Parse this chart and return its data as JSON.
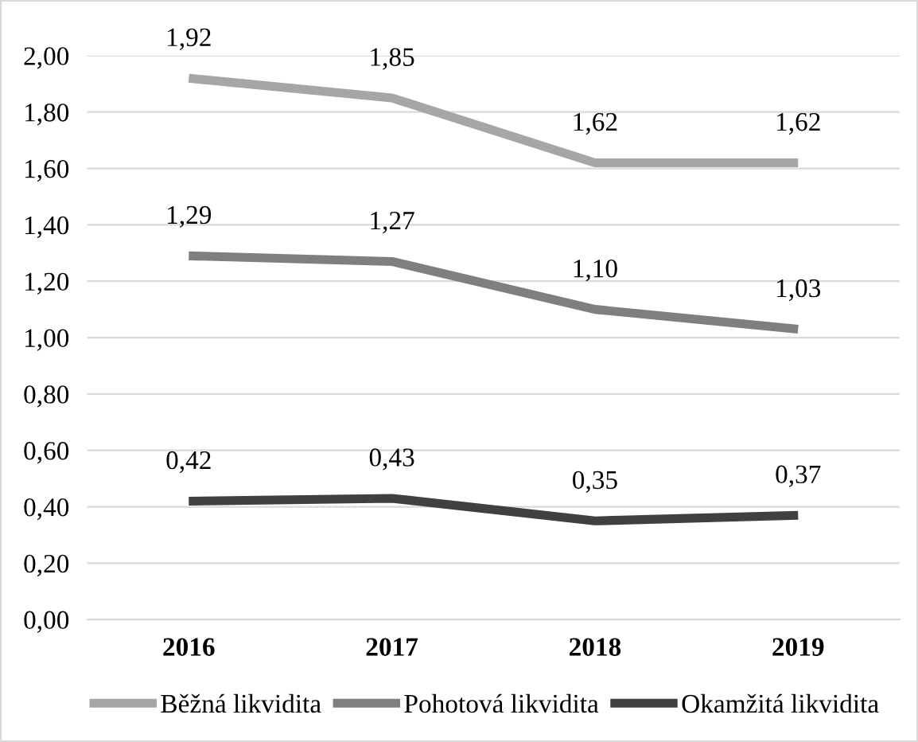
{
  "chart_data": {
    "type": "line",
    "categories": [
      "2016",
      "2017",
      "2018",
      "2019"
    ],
    "series": [
      {
        "name": "Běžná likvidita",
        "color": "#a6a6a6",
        "values": [
          1.92,
          1.85,
          1.62,
          1.62
        ],
        "value_labels": [
          "1,92",
          "1,85",
          "1,62",
          "1,62"
        ]
      },
      {
        "name": "Pohotová likvidita",
        "color": "#7f7f7f",
        "values": [
          1.29,
          1.27,
          1.1,
          1.03
        ],
        "value_labels": [
          "1,29",
          "1,27",
          "1,10",
          "1,03"
        ]
      },
      {
        "name": "Okamžitá likvidita",
        "color": "#404040",
        "values": [
          0.42,
          0.43,
          0.35,
          0.37
        ],
        "value_labels": [
          "0,42",
          "0,43",
          "0,35",
          "0,37"
        ]
      }
    ],
    "ylim": [
      0,
      2
    ],
    "yticks": [
      {
        "value": 0,
        "label": "0,00"
      },
      {
        "value": 0.2,
        "label": "0,20"
      },
      {
        "value": 0.4,
        "label": "0,40"
      },
      {
        "value": 0.6,
        "label": "0,60"
      },
      {
        "value": 0.8,
        "label": "0,80"
      },
      {
        "value": 1.0,
        "label": "1,00"
      },
      {
        "value": 1.2,
        "label": "1,20"
      },
      {
        "value": 1.4,
        "label": "1,40"
      },
      {
        "value": 1.6,
        "label": "1,60"
      },
      {
        "value": 1.8,
        "label": "1,80"
      },
      {
        "value": 2.0,
        "label": "2,00"
      }
    ],
    "grid": "y",
    "legend": "bottom",
    "marker": "none",
    "line_style": "solid"
  }
}
